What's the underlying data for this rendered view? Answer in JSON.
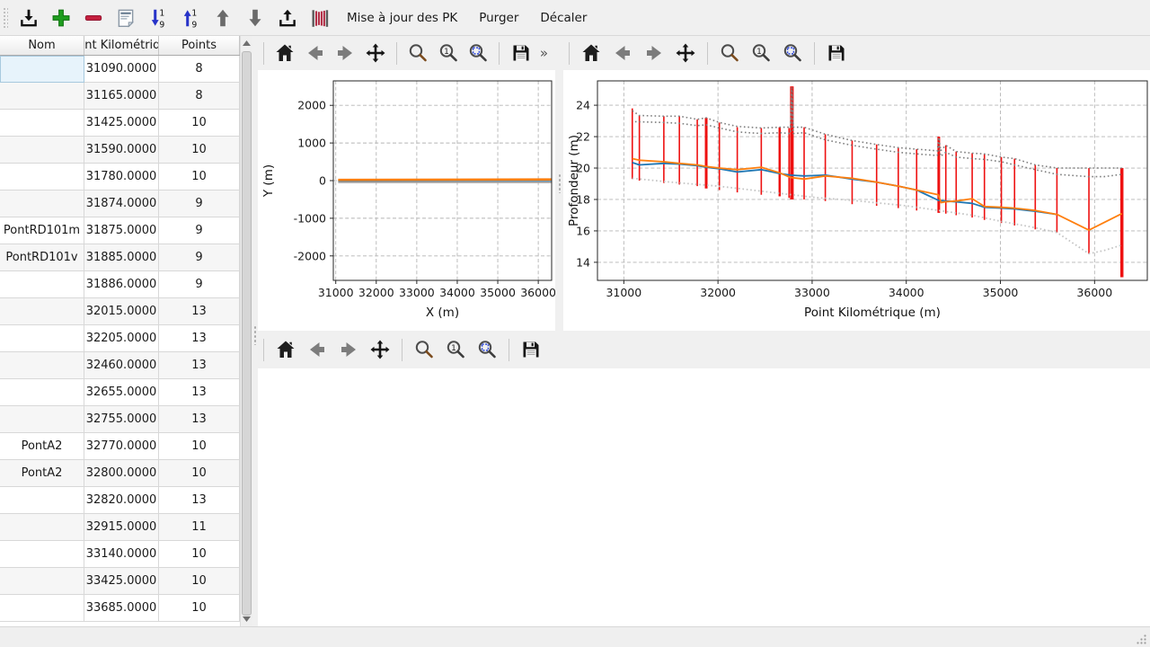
{
  "toolbar": {
    "icon_buttons": [
      {
        "name": "import",
        "icon": "download-tray-icon"
      },
      {
        "name": "add",
        "icon": "plus-icon",
        "color": "#1f9d1f"
      },
      {
        "name": "remove",
        "icon": "minus-icon",
        "color": "#c41f3e"
      },
      {
        "name": "notes",
        "icon": "document-icon"
      },
      {
        "name": "sort-descending",
        "icon": "sort-descending-icon",
        "color": "#2733c8"
      },
      {
        "name": "sort-ascending",
        "icon": "sort-ascending-icon",
        "color": "#2733c8"
      },
      {
        "name": "move-up",
        "icon": "arrow-up-icon"
      },
      {
        "name": "move-down",
        "icon": "arrow-down-icon"
      },
      {
        "name": "export",
        "icon": "upload-tray-icon"
      },
      {
        "name": "profiles",
        "icon": "red-bars-icon",
        "color": "#b22f47"
      }
    ],
    "text_buttons": [
      "Mise à jour des PK",
      "Purger",
      "Décaler"
    ]
  },
  "table": {
    "columns": [
      "Nom",
      "Point Kilométrique",
      "Points"
    ],
    "rows": [
      {
        "nom": "",
        "pk": "31090.0000",
        "points": "8"
      },
      {
        "nom": "",
        "pk": "31165.0000",
        "points": "8"
      },
      {
        "nom": "",
        "pk": "31425.0000",
        "points": "10"
      },
      {
        "nom": "",
        "pk": "31590.0000",
        "points": "10"
      },
      {
        "nom": "",
        "pk": "31780.0000",
        "points": "10"
      },
      {
        "nom": "",
        "pk": "31874.0000",
        "points": "9"
      },
      {
        "nom": "PontRD101m",
        "pk": "31875.0000",
        "points": "9"
      },
      {
        "nom": "PontRD101v",
        "pk": "31885.0000",
        "points": "9"
      },
      {
        "nom": "",
        "pk": "31886.0000",
        "points": "9"
      },
      {
        "nom": "",
        "pk": "32015.0000",
        "points": "13"
      },
      {
        "nom": "",
        "pk": "32205.0000",
        "points": "13"
      },
      {
        "nom": "",
        "pk": "32460.0000",
        "points": "13"
      },
      {
        "nom": "",
        "pk": "32655.0000",
        "points": "13"
      },
      {
        "nom": "",
        "pk": "32755.0000",
        "points": "13"
      },
      {
        "nom": "PontA2",
        "pk": "32770.0000",
        "points": "10"
      },
      {
        "nom": "PontA2",
        "pk": "32800.0000",
        "points": "10"
      },
      {
        "nom": "",
        "pk": "32820.0000",
        "points": "13"
      },
      {
        "nom": "",
        "pk": "32915.0000",
        "points": "11"
      },
      {
        "nom": "",
        "pk": "33140.0000",
        "points": "10"
      },
      {
        "nom": "",
        "pk": "33425.0000",
        "points": "10"
      },
      {
        "nom": "",
        "pk": "33685.0000",
        "points": "10"
      }
    ],
    "selected_cell": {
      "row": 0,
      "column": "nom"
    }
  },
  "plots": {
    "nav_icons": [
      "home",
      "back",
      "forward",
      "pan",
      "zoom",
      "zoom-one",
      "zoom-selection",
      "save"
    ],
    "more_label": "»"
  },
  "colors": {
    "vline_red": "#ee1111",
    "series_blue": "#1f77b4",
    "series_orange": "#ff7f0e",
    "envelope_gray": "#7f7f7f",
    "envelope_lightgray": "#c4c4c4",
    "selection_blue": "#e7f3fb"
  },
  "chart_data": [
    {
      "type": "line",
      "title": "",
      "xlabel": "X (m)",
      "ylabel": "Y (m)",
      "xlim": [
        30940,
        36330
      ],
      "ylim": [
        -2650,
        2650
      ],
      "xticks": [
        31000,
        32000,
        33000,
        34000,
        35000,
        36000
      ],
      "yticks": [
        -2000,
        -1000,
        0,
        1000,
        2000
      ],
      "grid": true,
      "series": [
        {
          "name": "trace-grise",
          "color": "#a0a0a0",
          "style": "solid",
          "width": 2,
          "x": [
            31060,
            36320
          ],
          "y": [
            -40,
            -40
          ]
        },
        {
          "name": "trace-bleue",
          "color": "#1f77b4",
          "style": "solid",
          "width": 2,
          "x": [
            31060,
            36320
          ],
          "y": [
            0,
            10
          ]
        },
        {
          "name": "trace-orange",
          "color": "#ff7f0e",
          "style": "solid",
          "width": 2.6,
          "x": [
            31060,
            36320
          ],
          "y": [
            20,
            30
          ]
        }
      ]
    },
    {
      "type": "line+vlines",
      "title": "",
      "xlabel": "Point Kilométrique (m)",
      "ylabel": "Profondeur (m)",
      "xlim": [
        30720,
        36560
      ],
      "ylim": [
        12.85,
        25.55
      ],
      "xticks": [
        31000,
        32000,
        33000,
        34000,
        35000,
        36000
      ],
      "yticks": [
        14,
        16,
        18,
        20,
        22,
        24
      ],
      "grid": true,
      "vlines": {
        "color": "#ee1111",
        "points": [
          {
            "pk": 31090,
            "top": 23.8,
            "bottom": 19.3
          },
          {
            "pk": 31165,
            "top": 23.35,
            "bottom": 19.2
          },
          {
            "pk": 31425,
            "top": 23.3,
            "bottom": 19.05
          },
          {
            "pk": 31590,
            "top": 23.3,
            "bottom": 18.95
          },
          {
            "pk": 31780,
            "top": 23.1,
            "bottom": 18.85
          },
          {
            "pk": 31875,
            "top": 23.2,
            "bottom": 18.7,
            "w": 3
          },
          {
            "pk": 32015,
            "top": 22.9,
            "bottom": 18.6
          },
          {
            "pk": 32205,
            "top": 22.6,
            "bottom": 18.45
          },
          {
            "pk": 32460,
            "top": 22.55,
            "bottom": 18.3
          },
          {
            "pk": 32655,
            "top": 22.6,
            "bottom": 18.2,
            "w": 2.5
          },
          {
            "pk": 32755,
            "top": 22.55,
            "bottom": 18.1
          },
          {
            "pk": 32785,
            "top": 25.2,
            "bottom": 18.0,
            "w": 4
          },
          {
            "pk": 32915,
            "top": 22.6,
            "bottom": 18.0
          },
          {
            "pk": 33140,
            "top": 22.15,
            "bottom": 17.9
          },
          {
            "pk": 33425,
            "top": 21.75,
            "bottom": 17.7
          },
          {
            "pk": 33685,
            "top": 21.5,
            "bottom": 17.6
          },
          {
            "pk": 33915,
            "top": 21.3,
            "bottom": 17.45
          },
          {
            "pk": 34110,
            "top": 21.2,
            "bottom": 17.3
          },
          {
            "pk": 34345,
            "top": 22.0,
            "bottom": 17.15,
            "w": 3
          },
          {
            "pk": 34420,
            "top": 21.45,
            "bottom": 17.1
          },
          {
            "pk": 34530,
            "top": 21.05,
            "bottom": 17.0
          },
          {
            "pk": 34700,
            "top": 20.95,
            "bottom": 16.85
          },
          {
            "pk": 34830,
            "top": 20.9,
            "bottom": 16.7
          },
          {
            "pk": 35010,
            "top": 20.7,
            "bottom": 16.5
          },
          {
            "pk": 35150,
            "top": 20.6,
            "bottom": 16.35
          },
          {
            "pk": 35370,
            "top": 20.2,
            "bottom": 16.1
          },
          {
            "pk": 35600,
            "top": 20.0,
            "bottom": 15.9
          },
          {
            "pk": 35940,
            "top": 20.0,
            "bottom": 14.55
          },
          {
            "pk": 36290,
            "top": 20.0,
            "bottom": 13.05,
            "w": 3.5
          }
        ]
      },
      "series": [
        {
          "name": "enveloppe-basse",
          "color": "#c4c4c4",
          "style": "dotted",
          "width": 1.8,
          "x": [
            31090,
            31500,
            32000,
            32500,
            33000,
            33500,
            34000,
            34345,
            34700,
            35010,
            35370,
            35600,
            35940,
            36100,
            36290
          ],
          "y": [
            19.35,
            19.1,
            18.85,
            18.5,
            18.15,
            17.9,
            17.6,
            17.3,
            17.0,
            16.6,
            16.2,
            15.9,
            14.55,
            14.75,
            15.1
          ]
        },
        {
          "name": "enveloppe-haute-1",
          "color": "#7f7f7f",
          "style": "dotted",
          "width": 1.6,
          "x": [
            31090,
            31165,
            31425,
            31590,
            31780,
            31875,
            32015,
            32205,
            32460,
            32655,
            32770,
            32785,
            32800,
            32915,
            33140,
            33425,
            33685,
            33915,
            34110,
            34330,
            34345,
            34365,
            34420,
            34530,
            34700,
            34830,
            35010,
            35150,
            35370,
            35600,
            35940,
            36290
          ],
          "y": [
            23.65,
            23.35,
            23.3,
            23.3,
            23.1,
            23.2,
            22.9,
            22.65,
            22.55,
            22.6,
            22.6,
            25.15,
            22.6,
            22.6,
            22.15,
            21.75,
            21.5,
            21.3,
            21.2,
            21.1,
            21.95,
            21.1,
            21.45,
            21.05,
            20.95,
            20.9,
            20.7,
            20.6,
            20.2,
            20.0,
            20.0,
            20.0
          ]
        },
        {
          "name": "enveloppe-haute-2",
          "color": "#7f7f7f",
          "style": "dotted",
          "width": 1.6,
          "x": [
            31120,
            31425,
            31590,
            31780,
            31875,
            32015,
            32205,
            32460,
            32655,
            32770,
            32785,
            32800,
            32915,
            33140,
            33425,
            33685,
            33915,
            34110,
            34330,
            34345,
            34365,
            34420,
            34530,
            34700,
            34830,
            35010,
            35150,
            35370,
            35600,
            35940,
            36100,
            36290
          ],
          "y": [
            22.95,
            22.9,
            22.85,
            22.7,
            22.75,
            22.55,
            22.3,
            22.2,
            22.25,
            22.2,
            24.9,
            22.2,
            22.25,
            21.8,
            21.45,
            21.2,
            21.0,
            20.9,
            20.8,
            21.6,
            20.75,
            21.0,
            20.7,
            20.6,
            20.55,
            20.4,
            20.2,
            19.9,
            19.6,
            19.45,
            19.45,
            19.6
          ]
        },
        {
          "name": "profondeur-bleue",
          "color": "#1f77b4",
          "style": "solid",
          "width": 1.8,
          "x": [
            31090,
            31165,
            31425,
            31590,
            31780,
            31875,
            32015,
            32205,
            32460,
            32655,
            32770,
            32915,
            33140,
            33425,
            33685,
            33915,
            34110,
            34340,
            34410,
            34530,
            34700,
            34830,
            35010,
            35150,
            35370,
            35600
          ],
          "y": [
            20.35,
            20.2,
            20.3,
            20.25,
            20.15,
            20.05,
            19.95,
            19.75,
            19.9,
            19.65,
            19.55,
            19.5,
            19.55,
            19.3,
            19.1,
            18.85,
            18.6,
            17.95,
            17.9,
            17.85,
            17.75,
            17.5,
            17.45,
            17.4,
            17.25,
            17.05
          ]
        },
        {
          "name": "profondeur-orange",
          "color": "#ff7f0e",
          "style": "solid",
          "width": 1.8,
          "x": [
            31090,
            31165,
            31425,
            31590,
            31780,
            31875,
            32015,
            32205,
            32460,
            32655,
            32770,
            32915,
            33140,
            33425,
            33685,
            33915,
            34110,
            34340,
            34370,
            34410,
            34530,
            34700,
            34830,
            35010,
            35150,
            35370,
            35600,
            35940,
            36290
          ],
          "y": [
            20.6,
            20.5,
            20.4,
            20.3,
            20.2,
            20.1,
            20.0,
            19.9,
            20.05,
            19.7,
            19.4,
            19.3,
            19.5,
            19.35,
            19.1,
            18.85,
            18.6,
            18.3,
            17.8,
            17.85,
            17.9,
            18.05,
            17.55,
            17.5,
            17.45,
            17.3,
            17.05,
            16.05,
            17.1
          ]
        }
      ]
    },
    {
      "type": "empty"
    }
  ]
}
